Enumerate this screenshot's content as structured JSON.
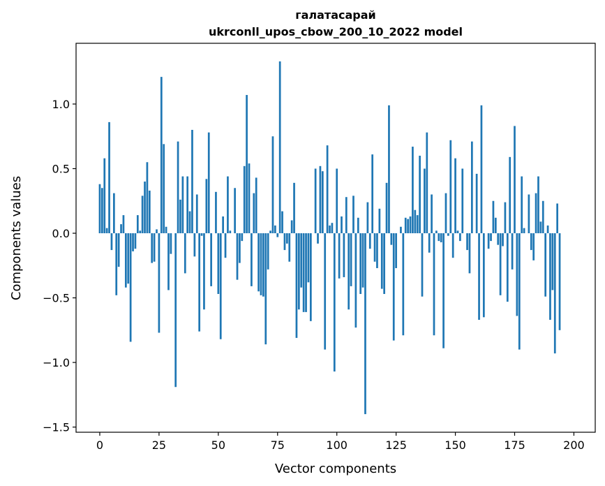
{
  "chart_data": {
    "type": "bar",
    "title_line1": "галатасарай",
    "title_line2": "ukrconll_upos_cbow_200_10_2022 model",
    "xlabel": "Vector components",
    "ylabel": "Components values",
    "xlim": [
      -10,
      209
    ],
    "ylim": [
      -1.54,
      1.47
    ],
    "xticks": [
      0,
      25,
      50,
      75,
      100,
      125,
      150,
      175,
      200
    ],
    "yticks": [
      -1.5,
      -1.0,
      -0.5,
      0.0,
      0.5,
      1.0
    ],
    "ytick_labels": [
      "−1.5",
      "−1.0",
      "−0.5",
      "0.0",
      "0.5",
      "1.0"
    ],
    "bar_color": "#1f77b4",
    "grid": false,
    "values": [
      0.38,
      0.35,
      0.58,
      0.04,
      0.86,
      -0.13,
      0.31,
      -0.48,
      -0.26,
      0.07,
      0.14,
      -0.42,
      -0.39,
      -0.84,
      -0.14,
      -0.12,
      0.14,
      0.02,
      0.29,
      0.4,
      0.55,
      0.33,
      -0.23,
      -0.22,
      0.03,
      -0.77,
      1.21,
      0.69,
      0.05,
      -0.44,
      -0.16,
      0.0,
      -1.19,
      0.71,
      0.26,
      0.44,
      -0.31,
      0.44,
      0.17,
      0.8,
      -0.18,
      0.3,
      -0.76,
      -0.02,
      -0.59,
      0.42,
      0.78,
      -0.41,
      0.0,
      0.32,
      -0.47,
      -0.82,
      0.13,
      -0.19,
      0.44,
      0.02,
      0.0,
      0.35,
      -0.36,
      -0.23,
      -0.06,
      0.52,
      1.07,
      0.54,
      -0.41,
      0.31,
      0.43,
      -0.45,
      -0.48,
      -0.49,
      -0.86,
      -0.28,
      0.02,
      0.75,
      0.06,
      -0.03,
      1.33,
      0.17,
      -0.13,
      -0.08,
      -0.22,
      0.1,
      0.39,
      -0.81,
      -0.59,
      -0.42,
      -0.61,
      -0.61,
      -0.38,
      -0.68,
      0.0,
      0.5,
      -0.08,
      0.52,
      0.48,
      -0.9,
      0.68,
      0.06,
      0.08,
      -1.07,
      0.5,
      -0.35,
      0.13,
      -0.34,
      0.28,
      -0.59,
      -0.41,
      0.29,
      -0.73,
      0.12,
      -0.47,
      -0.42,
      -1.4,
      0.24,
      -0.12,
      0.61,
      -0.22,
      -0.27,
      0.19,
      -0.43,
      -0.47,
      0.39,
      0.99,
      -0.09,
      -0.83,
      -0.27,
      0.0,
      0.05,
      -0.79,
      0.12,
      0.11,
      0.13,
      0.67,
      0.18,
      0.14,
      0.6,
      -0.49,
      0.5,
      0.78,
      -0.15,
      0.3,
      -0.79,
      0.02,
      -0.06,
      -0.07,
      -0.89,
      0.31,
      -0.02,
      0.72,
      -0.19,
      0.58,
      0.02,
      -0.06,
      0.5,
      0.0,
      -0.13,
      -0.31,
      0.71,
      0.0,
      0.46,
      -0.67,
      0.99,
      -0.65,
      0.0,
      -0.12,
      -0.06,
      0.25,
      0.12,
      -0.09,
      -0.48,
      -0.1,
      0.24,
      -0.53,
      0.59,
      -0.28,
      0.83,
      -0.64,
      -0.9,
      0.44,
      0.04,
      0.0,
      0.3,
      -0.13,
      -0.21,
      0.31,
      0.44,
      0.09,
      0.25,
      -0.49,
      0.06,
      -0.67,
      -0.44,
      -0.93,
      0.23,
      -0.75
    ]
  }
}
